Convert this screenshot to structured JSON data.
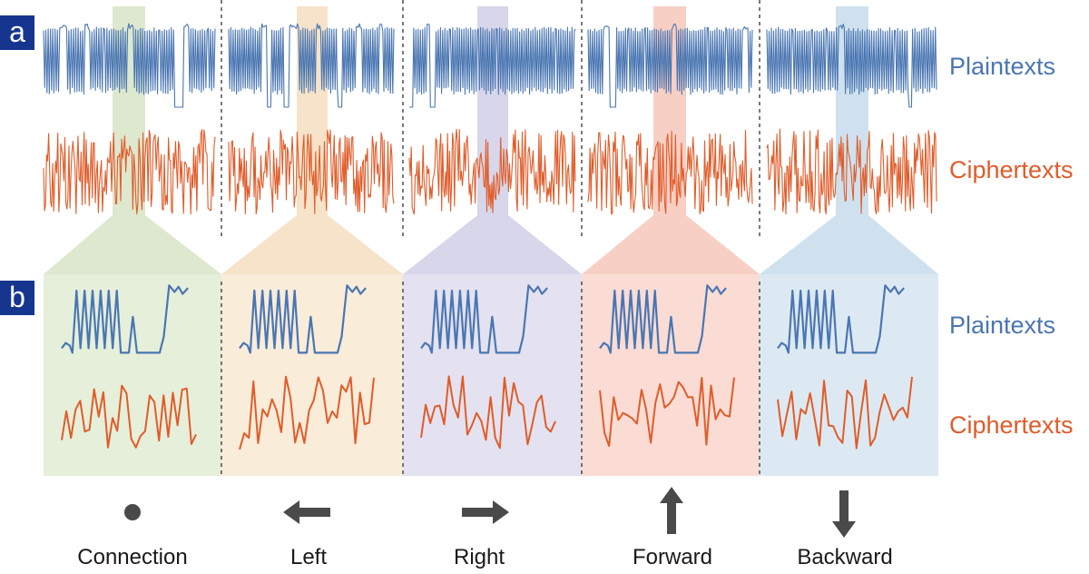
{
  "panels": {
    "a": "a",
    "b": "b"
  },
  "series": {
    "plain": {
      "label": "Plaintexts",
      "color": "#4a76b2"
    },
    "cipher": {
      "label": "Ciphertexts",
      "color": "#e05c2a"
    }
  },
  "commands": [
    {
      "label": "Connection",
      "icon": "dot-icon",
      "band_color": "#dde8cf",
      "band_fill": "#e6efda"
    },
    {
      "label": "Left",
      "icon": "arrow-left-icon",
      "band_color": "#f6e3c9",
      "band_fill": "#f9ecd9"
    },
    {
      "label": "Right",
      "icon": "arrow-right-icon",
      "band_color": "#d7d6ea",
      "band_fill": "#e4e2f0"
    },
    {
      "label": "Forward",
      "icon": "arrow-up-icon",
      "band_color": "#f7cfc4",
      "band_fill": "#fadcd4"
    },
    {
      "label": "Backward",
      "icon": "arrow-down-icon",
      "band_color": "#cfe1ee",
      "band_fill": "#dde9f2"
    }
  ],
  "colors": {
    "icon": "#4a4a4a",
    "divider": "#333333",
    "panel_tag": "#16358f"
  }
}
